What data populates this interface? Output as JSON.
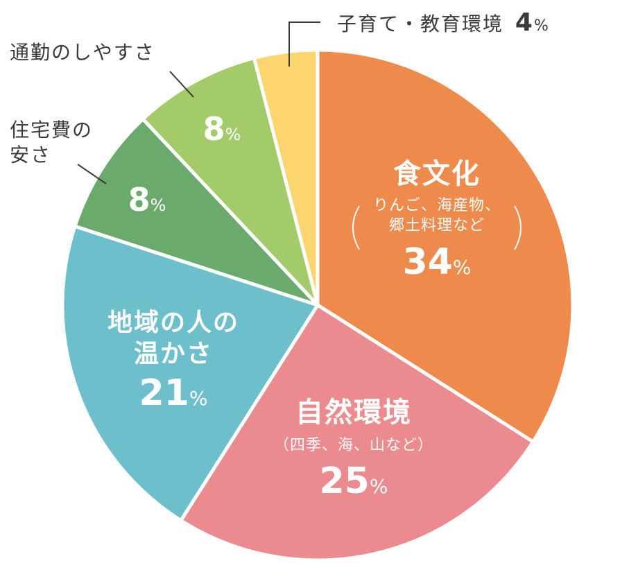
{
  "chart_data": {
    "type": "pie",
    "title": "",
    "start_angle_deg": 0,
    "direction": "clockwise",
    "categories": [
      "食文化",
      "自然環境",
      "地域の人の温かさ",
      "住宅費の安さ",
      "通勤のしやすさ",
      "子育て・教育環境"
    ],
    "values": [
      34,
      25,
      21,
      8,
      8,
      4
    ],
    "unit": "%",
    "colors": [
      "#ee8b4c",
      "#ec8b8f",
      "#6dbfcc",
      "#6aab6d",
      "#a3cb6a",
      "#fdd56e"
    ],
    "slices": [
      {
        "label": "食文化",
        "detail": "（りんご、海産物、郷土料理など）",
        "value": 34,
        "color": "#ee8b4c"
      },
      {
        "label": "自然環境",
        "detail": "（四季、海、山など）",
        "value": 25,
        "color": "#ec8b8f"
      },
      {
        "label": "地域の人の温かさ",
        "detail": "",
        "value": 21,
        "color": "#6dbfcc"
      },
      {
        "label": "住宅費の安さ",
        "detail": "",
        "value": 8,
        "color": "#6aab6d"
      },
      {
        "label": "通勤のしやすさ",
        "detail": "",
        "value": 8,
        "color": "#a3cb6a"
      },
      {
        "label": "子育て・教育環境",
        "detail": "",
        "value": 4,
        "color": "#fdd56e"
      }
    ],
    "legend": "none (labels placed on/next to slices)"
  },
  "labels": {
    "food": {
      "line1": "食文化",
      "sub1": "りんご、海産物、",
      "sub2": "郷土料理など",
      "num": "34",
      "sign": "%"
    },
    "nature": {
      "line1": "自然環境",
      "sub": "（四季、海、山など）",
      "num": "25",
      "sign": "%"
    },
    "people": {
      "line1": "地域の人の",
      "line2": "温かさ",
      "num": "21",
      "sign": "%"
    },
    "housing": {
      "line1": "住宅費の",
      "line2": "安さ",
      "num": "8",
      "sign": "%"
    },
    "commute": {
      "line1": "通勤のしやすさ",
      "num": "8",
      "sign": "%"
    },
    "childcare": {
      "line1": "子育て・教育環境",
      "num": "4",
      "sign": "%"
    }
  },
  "paren_left": "(",
  "paren_right": ")"
}
